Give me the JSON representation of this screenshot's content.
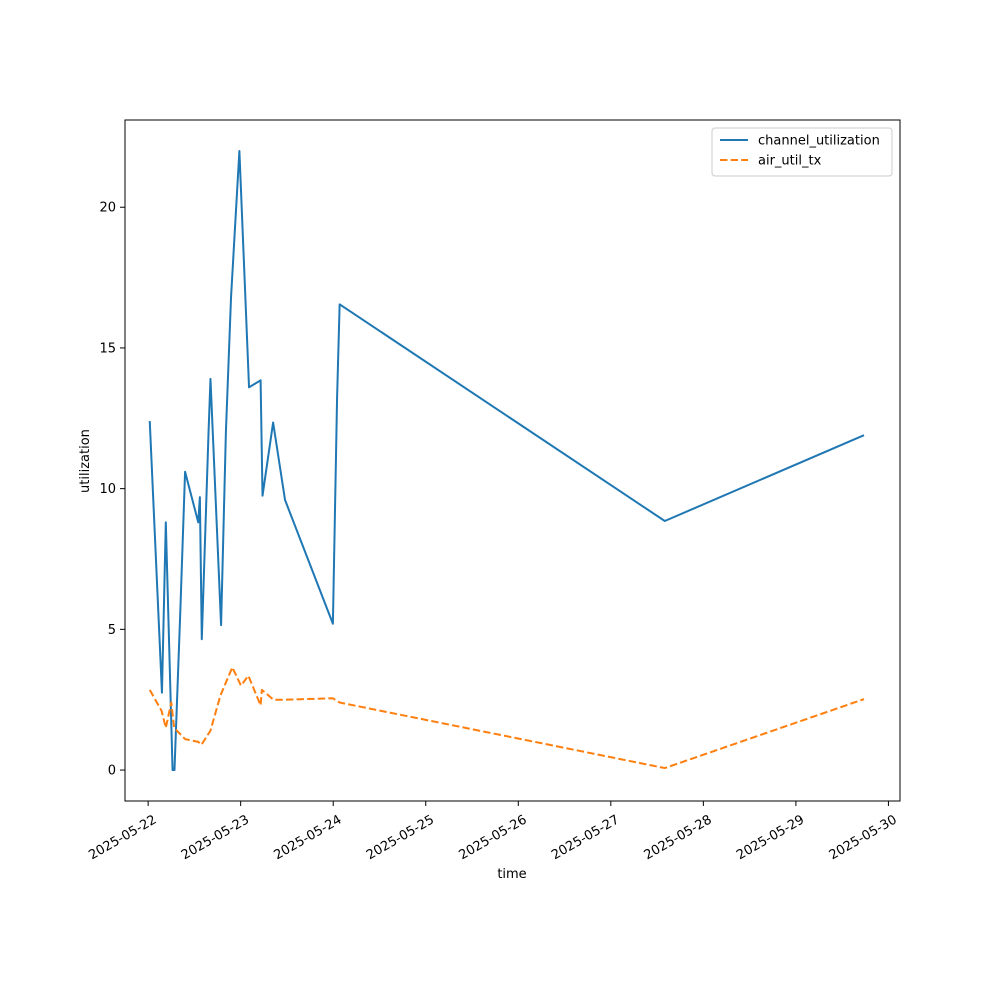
{
  "chart_data": {
    "type": "line",
    "xlabel": "time",
    "ylabel": "utilization",
    "x_axis": {
      "kind": "date",
      "range": [
        "2025-05-21T18:00",
        "2025-05-30T03:00"
      ],
      "ticks": [
        "2025-05-22",
        "2025-05-23",
        "2025-05-24",
        "2025-05-25",
        "2025-05-26",
        "2025-05-27",
        "2025-05-28",
        "2025-05-29",
        "2025-05-30"
      ]
    },
    "y_axis": {
      "range": [
        -1.1,
        23.1
      ],
      "ticks": [
        0,
        5,
        10,
        15,
        20
      ]
    },
    "grid": false,
    "legend": "top-right",
    "series": [
      {
        "name": "channel_utilization",
        "color": "#1f77b4",
        "dash": "solid",
        "points": [
          [
            "2025-05-22T00:25",
            12.4
          ],
          [
            "2025-05-22T03:35",
            2.75
          ],
          [
            "2025-05-22T04:35",
            8.8
          ],
          [
            "2025-05-22T06:20",
            0.0
          ],
          [
            "2025-05-22T06:50",
            0.0
          ],
          [
            "2025-05-22T08:20",
            5.6
          ],
          [
            "2025-05-22T09:35",
            10.6
          ],
          [
            "2025-05-22T13:00",
            8.8
          ],
          [
            "2025-05-22T13:25",
            9.7
          ],
          [
            "2025-05-22T13:55",
            4.65
          ],
          [
            "2025-05-22T15:40",
            12.0
          ],
          [
            "2025-05-22T16:10",
            13.9
          ],
          [
            "2025-05-22T18:55",
            5.15
          ],
          [
            "2025-05-22T20:10",
            12.0
          ],
          [
            "2025-05-22T21:30",
            16.8
          ],
          [
            "2025-05-22T23:40",
            22.0
          ],
          [
            "2025-05-23T02:10",
            13.6
          ],
          [
            "2025-05-23T05:10",
            13.85
          ],
          [
            "2025-05-23T05:40",
            9.75
          ],
          [
            "2025-05-23T08:25",
            12.35
          ],
          [
            "2025-05-23T11:30",
            9.6
          ],
          [
            "2025-05-23T23:55",
            5.2
          ],
          [
            "2025-05-24T01:00",
            13.2
          ],
          [
            "2025-05-24T01:40",
            16.55
          ],
          [
            "2025-05-27T14:00",
            8.85
          ],
          [
            "2025-05-29T17:40",
            11.9
          ]
        ]
      },
      {
        "name": "air_util_tx",
        "color": "#ff7f0e",
        "dash": "dashed",
        "points": [
          [
            "2025-05-22T00:25",
            2.85
          ],
          [
            "2025-05-22T03:30",
            2.1
          ],
          [
            "2025-05-22T04:35",
            1.5
          ],
          [
            "2025-05-22T06:00",
            2.4
          ],
          [
            "2025-05-22T06:45",
            1.5
          ],
          [
            "2025-05-22T09:35",
            1.1
          ],
          [
            "2025-05-22T13:00",
            1.0
          ],
          [
            "2025-05-22T13:50",
            0.9
          ],
          [
            "2025-05-22T16:10",
            1.4
          ],
          [
            "2025-05-22T18:45",
            2.65
          ],
          [
            "2025-05-22T21:50",
            3.65
          ],
          [
            "2025-05-23T00:05",
            3.0
          ],
          [
            "2025-05-23T02:00",
            3.35
          ],
          [
            "2025-05-23T05:10",
            2.3
          ],
          [
            "2025-05-23T05:30",
            2.85
          ],
          [
            "2025-05-23T08:30",
            2.5
          ],
          [
            "2025-05-23T11:30",
            2.5
          ],
          [
            "2025-05-23T23:55",
            2.55
          ],
          [
            "2025-05-24T01:40",
            2.4
          ],
          [
            "2025-05-27T14:00",
            0.07
          ],
          [
            "2025-05-29T17:40",
            2.52
          ]
        ]
      }
    ]
  }
}
